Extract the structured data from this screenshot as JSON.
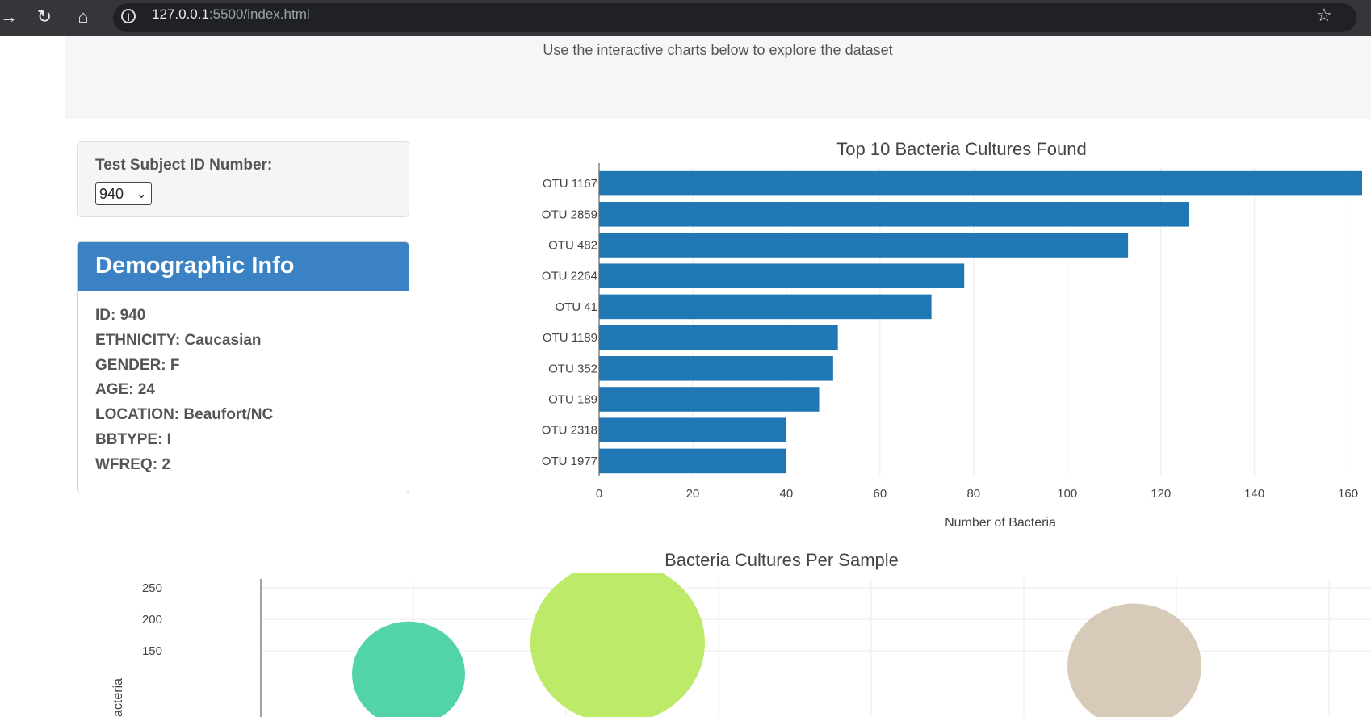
{
  "browser": {
    "url_host": "127.0.0.1",
    "url_path": ":5500/index.html"
  },
  "header": {
    "subtitle": "Use the interactive charts below to explore the dataset"
  },
  "selector": {
    "label": "Test Subject ID Number:",
    "selected": "940"
  },
  "demographic": {
    "title": "Demographic Info",
    "items": [
      "ID: 940",
      "ETHNICITY: Caucasian",
      "GENDER: F",
      "AGE: 24",
      "LOCATION: Beaufort/NC",
      "BBTYPE: I",
      "WFREQ: 2"
    ]
  },
  "chart_data": [
    {
      "type": "bar",
      "orientation": "horizontal",
      "title": "Top 10 Bacteria Cultures Found",
      "xlabel": "Number of Bacteria",
      "ylabel": "",
      "categories": [
        "OTU 1167",
        "OTU 2859",
        "OTU 482",
        "OTU 2264",
        "OTU 41",
        "OTU 1189",
        "OTU 352",
        "OTU 189",
        "OTU 2318",
        "OTU 1977"
      ],
      "values": [
        163,
        126,
        113,
        78,
        71,
        51,
        50,
        47,
        40,
        40
      ],
      "xlim": [
        0,
        163
      ],
      "xticks": [
        0,
        20,
        40,
        60,
        80,
        100,
        120,
        140,
        160
      ],
      "color": "#1f77b4",
      "grid": true
    },
    {
      "type": "scatter",
      "title": "Bacteria Cultures Per Sample",
      "xlabel": "",
      "ylabel": "acteria",
      "ylim": [
        105,
        265
      ],
      "yticks": [
        150,
        200,
        250
      ],
      "grid": true,
      "points": [
        {
          "x": 482,
          "y": 113,
          "color": "#3fcf9f"
        },
        {
          "x": 1167,
          "y": 163,
          "color": "#b7e85a"
        },
        {
          "x": 2859,
          "y": 126,
          "color": "#d4c4b0"
        }
      ]
    }
  ]
}
